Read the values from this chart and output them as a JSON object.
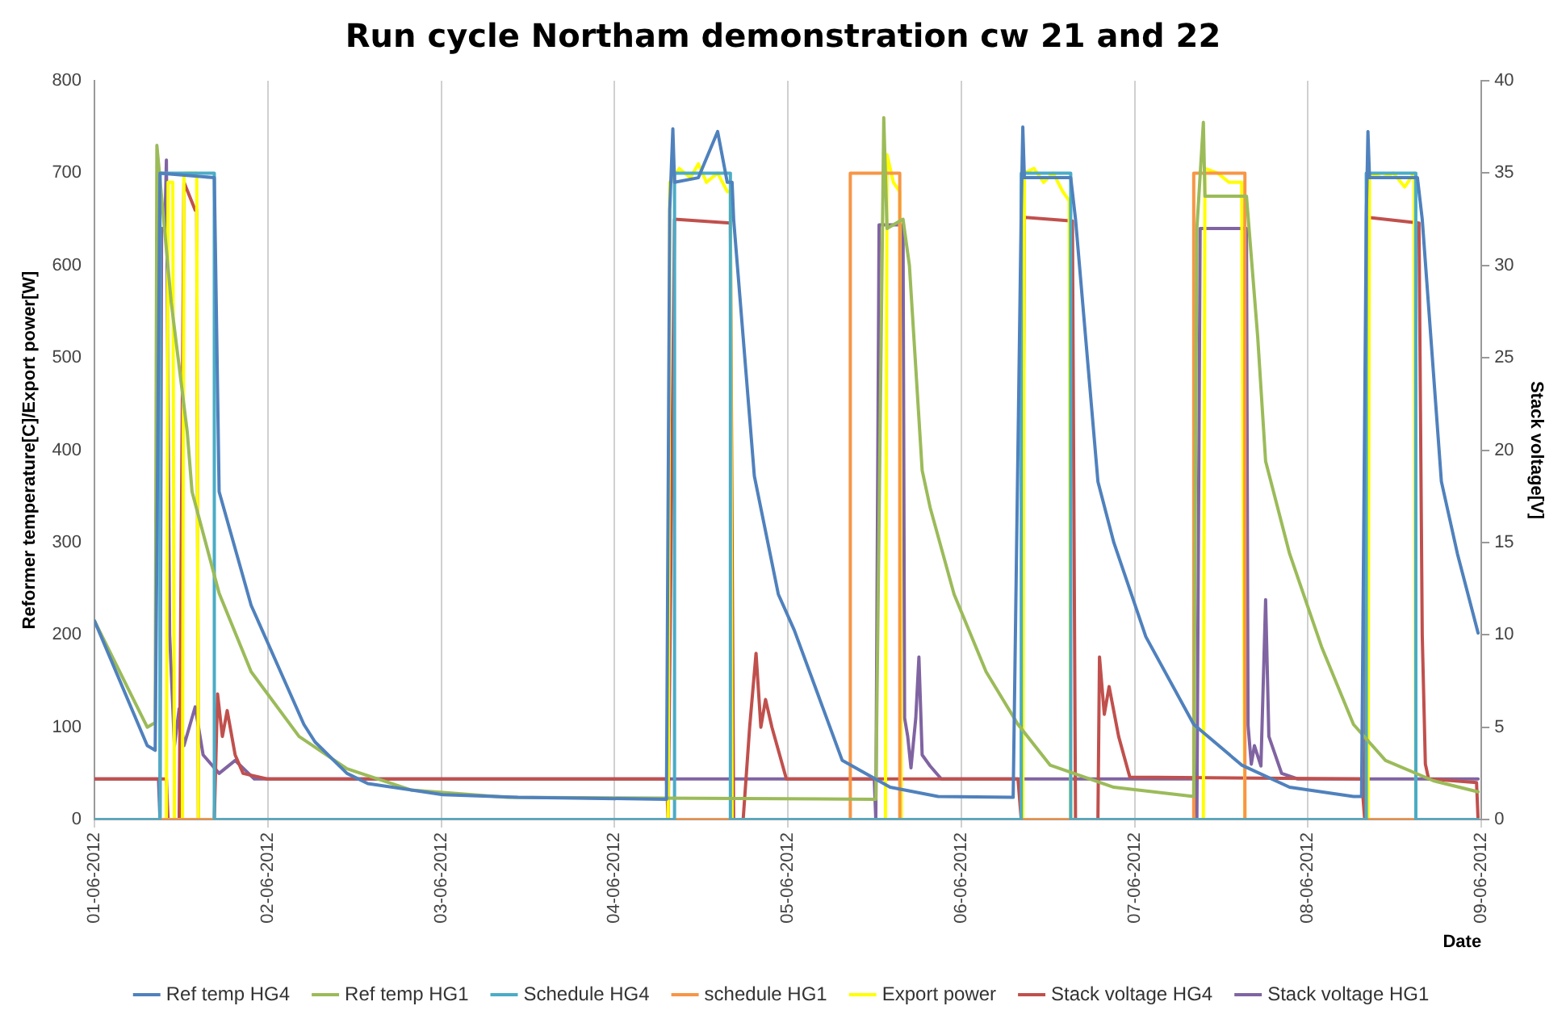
{
  "chart_data": {
    "type": "line",
    "title": "Run cycle Northam demonstration cw 21 and 22",
    "xlabel": "Date",
    "ylabel": "Reformer temperature[C]/Export power[W]",
    "y2label": "Stack voltage[V]",
    "xlim": [
      "2012-06-01",
      "2012-06-09"
    ],
    "xticks": [
      {
        "value": "2012-06-01",
        "label": "01-06-2012"
      },
      {
        "value": "2012-06-02",
        "label": "02-06-2012"
      },
      {
        "value": "2012-06-03",
        "label": "03-06-2012"
      },
      {
        "value": "2012-06-04",
        "label": "04-06-2012"
      },
      {
        "value": "2012-06-05",
        "label": "05-06-2012"
      },
      {
        "value": "2012-06-06",
        "label": "06-06-2012"
      },
      {
        "value": "2012-06-07",
        "label": "07-06-2012"
      },
      {
        "value": "2012-06-08",
        "label": "08-06-2012"
      },
      {
        "value": "2012-06-09",
        "label": "09-06-2012"
      }
    ],
    "ylim": [
      0,
      800
    ],
    "yticks": [
      0,
      100,
      200,
      300,
      400,
      500,
      600,
      700,
      800
    ],
    "y2lim": [
      0,
      40
    ],
    "y2ticks": [
      0,
      5,
      10,
      15,
      20,
      25,
      30,
      35,
      40
    ],
    "grid": "x",
    "legend": "bottom",
    "marker": "none",
    "line_style": "solid",
    "series": [
      {
        "name": "Ref temp HG4",
        "color": "#4f81bd",
        "x": [
          "2012-06-01T00:00",
          "2012-06-01T07:18",
          "2012-06-01T08:24",
          "2012-06-01T09:04",
          "2012-06-01T16:35",
          "2012-06-01T17:15",
          "2012-06-01T21:41",
          "2012-06-02T04:59",
          "2012-06-02T06:32",
          "2012-06-02T10:57",
          "2012-06-02T13:50",
          "2012-06-03T00:13",
          "2012-06-03T10:37",
          "2012-06-04T07:11",
          "2012-06-04T07:38",
          "2012-06-04T08:04",
          "2012-06-04T08:18",
          "2012-06-04T11:36",
          "2012-06-04T14:16",
          "2012-06-04T15:36",
          "2012-06-04T16:16",
          "2012-06-04T16:29",
          "2012-06-04T19:21",
          "2012-06-04T22:40",
          "2012-06-05T00:53",
          "2012-06-05T07:31",
          "2012-06-05T14:09",
          "2012-06-05T20:48",
          "2012-06-06T07:11",
          "2012-06-06T08:18",
          "2012-06-06T08:31",
          "2012-06-06T08:44",
          "2012-06-06T15:09",
          "2012-06-06T15:49",
          "2012-06-06T18:55",
          "2012-06-06T21:07",
          "2012-06-07T01:33",
          "2012-06-07T08:11",
          "2012-06-07T14:49",
          "2012-06-07T21:27",
          "2012-06-08T06:18",
          "2012-06-08T07:25",
          "2012-06-08T08:04",
          "2012-06-08T08:18",
          "2012-06-08T08:31",
          "2012-06-08T15:09",
          "2012-06-08T15:49",
          "2012-06-08T18:28",
          "2012-06-08T20:41",
          "2012-06-08T23:33"
        ],
        "values": [
          215,
          80,
          75,
          700,
          695,
          355,
          232,
          103,
          84,
          50,
          39,
          27,
          24,
          22,
          660,
          748,
          690,
          695,
          745,
          690,
          690,
          650,
          372,
          244,
          205,
          64,
          35,
          25,
          24,
          660,
          750,
          695,
          695,
          650,
          366,
          300,
          198,
          103,
          59,
          35,
          25,
          25,
          650,
          745,
          695,
          695,
          650,
          366,
          288,
          202
        ]
      },
      {
        "name": "Ref temp HG1",
        "color": "#9bbb59",
        "x": [
          "2012-06-01T00:00",
          "2012-06-01T07:18",
          "2012-06-01T08:24",
          "2012-06-01T08:38",
          "2012-06-01T10:37",
          "2012-06-01T12:50",
          "2012-06-01T13:30",
          "2012-06-01T17:15",
          "2012-06-01T21:41",
          "2012-06-02T04:19",
          "2012-06-02T10:57",
          "2012-06-02T19:48",
          "2012-06-03T09:04",
          "2012-06-05T12:10",
          "2012-06-05T13:16",
          "2012-06-05T13:43",
          "2012-06-05T15:56",
          "2012-06-05T16:49",
          "2012-06-05T18:35",
          "2012-06-05T19:41",
          "2012-06-05T23:00",
          "2012-06-06T03:26",
          "2012-06-06T07:51",
          "2012-06-06T12:17",
          "2012-06-06T21:07",
          "2012-06-07T08:11",
          "2012-06-07T08:37",
          "2012-06-07T09:31",
          "2012-06-07T09:44",
          "2012-06-07T15:29",
          "2012-06-07T17:02",
          "2012-06-07T18:08",
          "2012-06-07T21:27",
          "2012-06-08T01:53",
          "2012-06-08T06:18",
          "2012-06-08T10:44",
          "2012-06-08T17:22",
          "2012-06-08T23:33"
        ],
        "values": [
          215,
          100,
          105,
          730,
          560,
          420,
          355,
          245,
          160,
          90,
          55,
          32,
          24,
          22,
          760,
          640,
          650,
          600,
          378,
          338,
          244,
          160,
          103,
          59,
          35,
          25,
          640,
          755,
          675,
          675,
          523,
          388,
          288,
          187,
          103,
          64,
          42,
          30
        ]
      },
      {
        "name": "Schedule HG4",
        "color": "#4bacc6",
        "x": [
          "2012-06-01T00:00",
          "2012-06-01T09:04",
          "2012-06-01T09:04",
          "2012-06-01T16:35",
          "2012-06-01T16:35",
          "2012-06-04T08:18",
          "2012-06-04T08:18",
          "2012-06-04T16:02",
          "2012-06-04T16:02",
          "2012-06-06T08:18",
          "2012-06-06T08:18",
          "2012-06-06T15:09",
          "2012-06-06T15:09",
          "2012-06-08T08:04",
          "2012-06-08T08:04",
          "2012-06-08T14:56",
          "2012-06-08T14:56",
          "2012-06-08T23:33"
        ],
        "values": [
          0,
          0,
          700,
          700,
          0,
          0,
          700,
          700,
          0,
          0,
          700,
          700,
          0,
          0,
          700,
          700,
          0,
          0
        ]
      },
      {
        "name": "schedule HG1",
        "color": "#f79646",
        "x": [
          "2012-06-01T00:00",
          "2012-06-05T08:38",
          "2012-06-05T08:38",
          "2012-06-05T15:29",
          "2012-06-05T15:29",
          "2012-06-07T08:11",
          "2012-06-07T08:11",
          "2012-06-07T15:16",
          "2012-06-07T15:16",
          "2012-06-08T23:33"
        ],
        "values": [
          0,
          0,
          700,
          700,
          0,
          0,
          700,
          700,
          0,
          0
        ]
      },
      {
        "name": "Export power",
        "color": "#ffff00",
        "x": [
          "2012-06-01T00:00",
          "2012-06-01T09:57",
          "2012-06-01T10:11",
          "2012-06-01T10:50",
          "2012-06-01T11:04",
          "2012-06-01T12:10",
          "2012-06-01T12:23",
          "2012-06-01T14:09",
          "2012-06-01T14:23",
          "2012-06-04T07:25",
          "2012-06-04T07:38",
          "2012-06-04T08:58",
          "2012-06-04T10:30",
          "2012-06-04T11:36",
          "2012-06-04T12:43",
          "2012-06-04T14:16",
          "2012-06-04T15:36",
          "2012-06-04T16:02",
          "2012-06-04T16:16",
          "2012-06-05T13:30",
          "2012-06-05T13:43",
          "2012-06-05T14:36",
          "2012-06-05T15:29",
          "2012-06-05T15:42",
          "2012-06-06T08:31",
          "2012-06-06T08:44",
          "2012-06-06T10:04",
          "2012-06-06T11:24",
          "2012-06-06T12:43",
          "2012-06-06T14:03",
          "2012-06-06T14:56",
          "2012-06-06T15:09",
          "2012-06-07T09:31",
          "2012-06-07T09:44",
          "2012-06-07T11:30",
          "2012-06-07T13:03",
          "2012-06-07T14:49",
          "2012-06-07T15:16",
          "2012-06-08T08:18",
          "2012-06-08T08:31",
          "2012-06-08T10:17",
          "2012-06-08T11:50",
          "2012-06-08T13:23",
          "2012-06-08T14:42",
          "2012-06-08T14:56",
          "2012-06-08T23:33"
        ],
        "values": [
          0,
          0,
          690,
          690,
          0,
          0,
          700,
          700,
          0,
          0,
          690,
          705,
          695,
          710,
          690,
          700,
          680,
          680,
          0,
          0,
          720,
          690,
          680,
          0,
          0,
          700,
          705,
          690,
          700,
          680,
          670,
          0,
          0,
          705,
          700,
          690,
          690,
          0,
          0,
          700,
          695,
          700,
          685,
          700,
          0,
          0
        ]
      },
      {
        "name": "Stack voltage HG4",
        "color": "#c0504d",
        "axis": "y2",
        "x": [
          "2012-06-01T00:00",
          "2012-06-01T09:57",
          "2012-06-01T10:11",
          "2012-06-01T11:43",
          "2012-06-01T12:23",
          "2012-06-01T13:56",
          "2012-06-01T14:09",
          "2012-06-01T14:23",
          "2012-06-01T16:35",
          "2012-06-01T17:02",
          "2012-06-01T17:42",
          "2012-06-01T18:22",
          "2012-06-01T19:28",
          "2012-06-01T20:34",
          "2012-06-01T23:53",
          "2012-06-04T07:11",
          "2012-06-04T07:25",
          "2012-06-04T08:18",
          "2012-06-04T16:02",
          "2012-06-04T16:29",
          "2012-06-04T17:48",
          "2012-06-04T18:42",
          "2012-06-04T19:35",
          "2012-06-04T20:15",
          "2012-06-04T20:54",
          "2012-06-04T21:47",
          "2012-06-04T23:47",
          "2012-06-06T07:51",
          "2012-06-06T08:18",
          "2012-06-06T08:44",
          "2012-06-06T15:23",
          "2012-06-06T15:49",
          "2012-06-06T18:55",
          "2012-06-06T19:08",
          "2012-06-06T19:48",
          "2012-06-06T20:28",
          "2012-06-06T21:47",
          "2012-06-06T23:20",
          "2012-06-08T07:25",
          "2012-06-08T07:51",
          "2012-06-08T08:18",
          "2012-06-08T15:22",
          "2012-06-08T15:49",
          "2012-06-08T16:15",
          "2012-06-08T16:42",
          "2012-06-08T23:20",
          "2012-06-08T23:33"
        ],
        "values": [
          2.2,
          2.2,
          0,
          0,
          34.5,
          33,
          33,
          0,
          0,
          6.8,
          4.5,
          5.9,
          3.5,
          2.5,
          2.2,
          2.2,
          0,
          32.5,
          32.3,
          0,
          0,
          5,
          9,
          5,
          6.5,
          5,
          2.2,
          2.2,
          0,
          32.6,
          32.4,
          0,
          0,
          8.8,
          5.7,
          7.2,
          4.5,
          2.3,
          2.2,
          0,
          32.6,
          32.3,
          10,
          3,
          2.2,
          2,
          0
        ]
      },
      {
        "name": "Stack voltage HG1",
        "color": "#8064a2",
        "axis": "y2",
        "x": [
          "2012-06-01T00:00",
          "2012-06-01T08:51",
          "2012-06-01T09:04",
          "2012-06-01T09:17",
          "2012-06-01T09:44",
          "2012-06-01T09:57",
          "2012-06-01T10:24",
          "2012-06-01T11:04",
          "2012-06-01T11:43",
          "2012-06-01T12:23",
          "2012-06-01T13:56",
          "2012-06-01T15:02",
          "2012-06-01T17:15",
          "2012-06-01T19:28",
          "2012-06-01T22:07",
          "2012-06-05T11:57",
          "2012-06-05T12:10",
          "2012-06-05T12:37",
          "2012-06-05T15:56",
          "2012-06-05T16:09",
          "2012-06-05T16:35",
          "2012-06-05T17:02",
          "2012-06-05T17:42",
          "2012-06-05T18:08",
          "2012-06-05T18:35",
          "2012-06-05T19:41",
          "2012-06-05T21:14",
          "2012-06-07T08:11",
          "2012-06-07T08:37",
          "2012-06-07T09:04",
          "2012-06-07T15:29",
          "2012-06-07T15:42",
          "2012-06-07T16:09",
          "2012-06-07T16:35",
          "2012-06-07T17:29",
          "2012-06-07T18:08",
          "2012-06-07T18:35",
          "2012-06-07T20:21",
          "2012-06-07T22:34",
          "2012-06-08T23:33"
        ],
        "values": [
          2.2,
          2.2,
          0,
          32,
          32,
          35.7,
          10,
          4,
          6,
          4,
          6.1,
          3.5,
          2.5,
          3.2,
          2.2,
          2.2,
          0,
          32.2,
          32.2,
          5.5,
          4.5,
          2.8,
          5.5,
          8.8,
          3.5,
          2.9,
          2.2,
          2.2,
          0,
          32,
          32,
          5.1,
          3,
          4,
          2.9,
          11.9,
          4.5,
          2.5,
          2.2,
          2.2
        ]
      }
    ]
  }
}
